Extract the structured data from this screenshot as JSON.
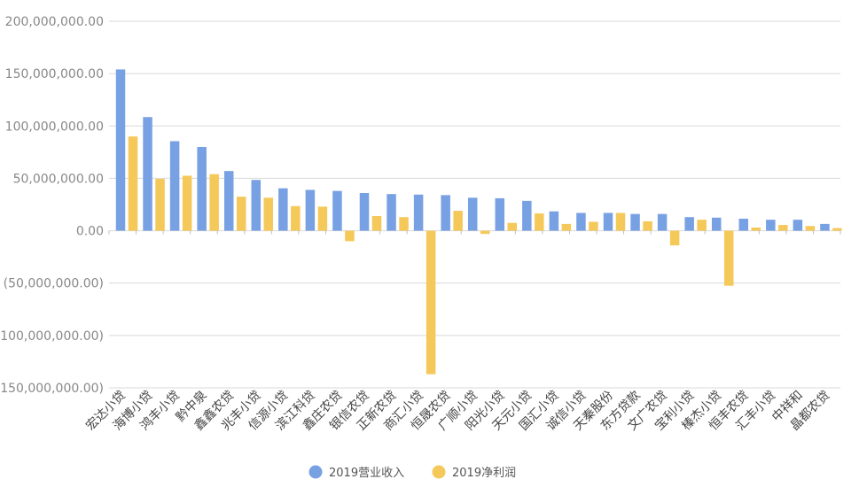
{
  "chart_data": {
    "type": "bar",
    "title": "",
    "xlabel": "",
    "ylabel": "",
    "ylim": [
      -150000000,
      200000000
    ],
    "yticks": [
      200000000,
      150000000,
      100000000,
      50000000,
      0,
      -50000000,
      -100000000,
      -150000000
    ],
    "ytick_labels": [
      "200,000,000.00",
      "150,000,000.00",
      "100,000,000.00",
      "50,000,000.00",
      "0.00",
      "(50,000,000.00)",
      "(100,000,000.00)",
      "(150,000,000.00)"
    ],
    "grid": true,
    "legend": "bottom-center",
    "categories": [
      "宏达小贷",
      "海博小贷",
      "鸿丰小贷",
      "黔中泉",
      "鑫鑫农贷",
      "兆丰小贷",
      "信源小贷",
      "滨江科贷",
      "鑫庄农贷",
      "银信农贷",
      "正新农贷",
      "商汇小贷",
      "恒晟农贷",
      "广顺小贷",
      "阳光小贷",
      "天元小贷",
      "国汇小贷",
      "诚信小贷",
      "天秦股份",
      "东方贷款",
      "文广农贷",
      "宝利小贷",
      "榛杰小贷",
      "恒丰农贷",
      "汇丰小贷",
      "中祥和",
      "晶都农贷"
    ],
    "series": [
      {
        "name": "2019营业收入",
        "color": "#78a1e3",
        "values": [
          154000000,
          108500000,
          85500000,
          80000000,
          57000000,
          48500000,
          40500000,
          39000000,
          38000000,
          36000000,
          35000000,
          34500000,
          34000000,
          31500000,
          31000000,
          28500000,
          18500000,
          17000000,
          17000000,
          16000000,
          16000000,
          13000000,
          12500000,
          11500000,
          10500000,
          10500000,
          6500000
        ]
      },
      {
        "name": "2019净利润",
        "color": "#f5c85a",
        "values": [
          90000000,
          49500000,
          52500000,
          54000000,
          32500000,
          31500000,
          23500000,
          23000000,
          -10000000,
          14000000,
          13000000,
          -137000000,
          19000000,
          -3000000,
          7500000,
          16500000,
          6500000,
          8500000,
          17000000,
          9000000,
          -14000000,
          10500000,
          -52500000,
          3000000,
          5500000,
          4500000,
          2500000
        ]
      }
    ]
  }
}
